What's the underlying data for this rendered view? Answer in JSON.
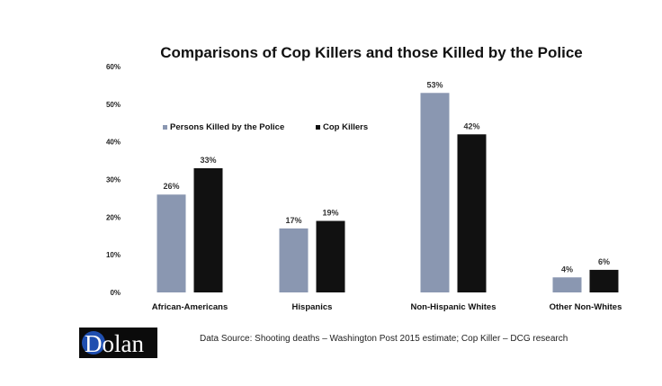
{
  "chart_data": {
    "type": "bar",
    "title": "Comparisons of Cop Killers and those Killed by the Police",
    "xlabel": "",
    "ylabel": "",
    "categories": [
      "African-Americans",
      "Hispanics",
      "Non-Hispanic Whites",
      "Other Non-Whites"
    ],
    "series": [
      {
        "name": "Persons Killed by the Police",
        "values": [
          26,
          17,
          53,
          4
        ],
        "labels": [
          "26%",
          "17%",
          "53%",
          "4%"
        ],
        "color": "#8a97b1"
      },
      {
        "name": "Cop Killers",
        "values": [
          33,
          19,
          42,
          6
        ],
        "labels": [
          "33%",
          "19%",
          "42%",
          "6%"
        ],
        "color": "#111111"
      }
    ],
    "ylim": [
      0,
      60
    ],
    "yticks": [
      0,
      10,
      20,
      30,
      40,
      50,
      60
    ],
    "ytick_labels": [
      "0%",
      "10%",
      "20%",
      "30%",
      "40%",
      "50%",
      "60%"
    ],
    "grid": false,
    "legend": "top-left"
  },
  "footer": {
    "logo_text": "Dolan",
    "logo_colors": {
      "background": "#0b0b0b",
      "circle": "#1f4fb0"
    },
    "source": "Data Source:  Shooting deaths – Washington Post 2015 estimate; Cop Killer – DCG research"
  }
}
